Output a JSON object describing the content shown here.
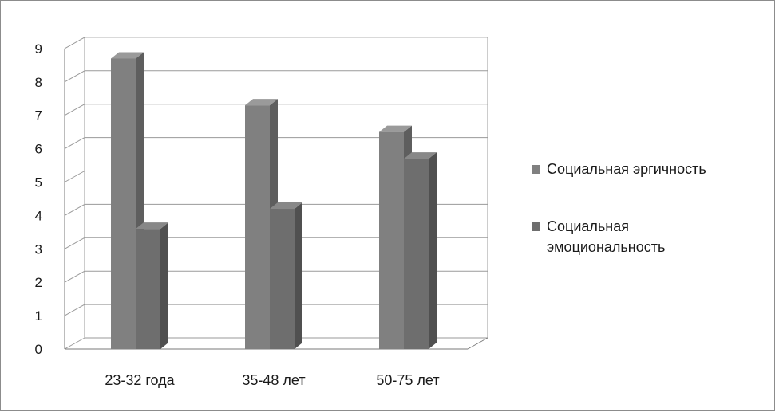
{
  "chart_data": {
    "type": "bar",
    "style": "3d-clustered-column",
    "categories": [
      "23-32 года",
      "35-48 лет",
      "50-75 лет"
    ],
    "series": [
      {
        "name": "Социальная эргичность",
        "values": [
          8.7,
          7.3,
          6.5
        ],
        "color": "#808080"
      },
      {
        "name": "Социальная эмоциональность",
        "values": [
          3.6,
          4.2,
          5.7
        ],
        "color": "#6e6e6e"
      }
    ],
    "y_ticks": [
      "0",
      "1",
      "2",
      "3",
      "4",
      "5",
      "6",
      "7",
      "8",
      "9"
    ],
    "ylim": [
      0,
      9
    ],
    "grid": true,
    "legend_position": "right",
    "legend_lines": [
      [
        "Социальная эргичность"
      ],
      [
        "Социальная",
        "эмоциональность"
      ]
    ]
  }
}
